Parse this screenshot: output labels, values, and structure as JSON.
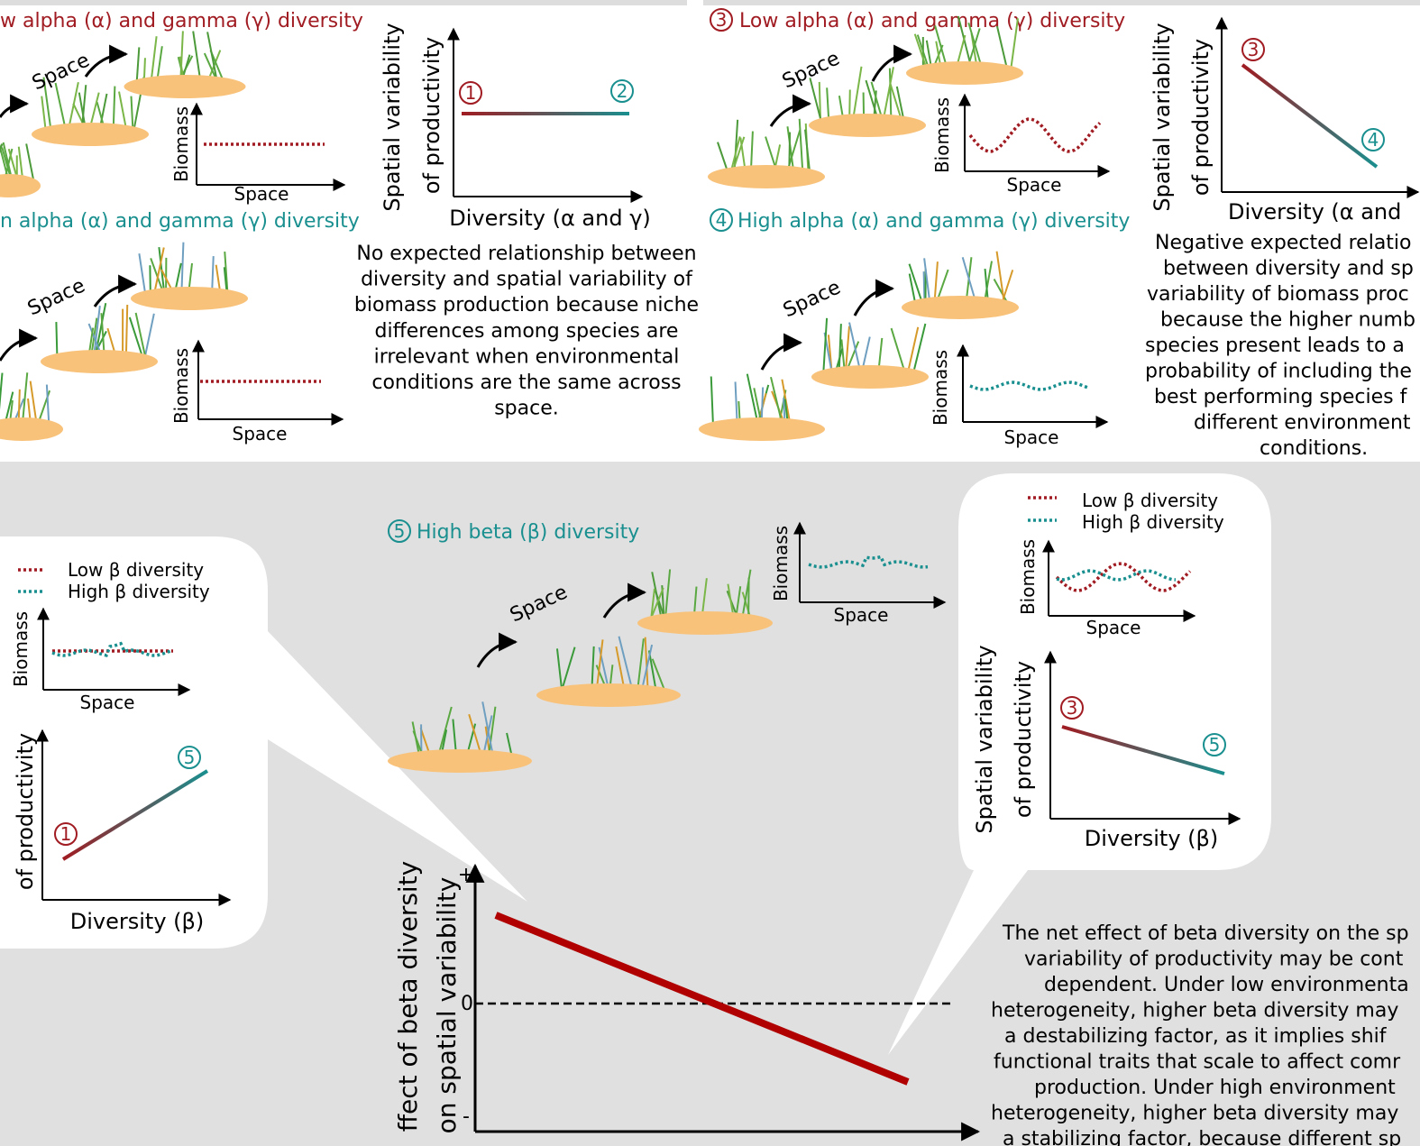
{
  "panel_a": {
    "scenario_low": {
      "label": "w alpha (α) and gamma (γ) diversity",
      "arrow_label": "Space",
      "y_axis": "Biomass",
      "x_axis": "Space"
    },
    "scenario_high": {
      "label": "n alpha (α) and gamma (γ) diversity",
      "arrow_label": "Space",
      "y_axis": "Biomass",
      "x_axis": "Space"
    },
    "plot": {
      "y_axis": [
        "Spatial variability",
        "of productivity"
      ],
      "x_axis": "Diversity (α and γ)",
      "markers": [
        "1",
        "2"
      ]
    },
    "caption": [
      "No expected relationship between",
      "diversity and spatial variability of",
      "biomass production because niche",
      "differences among species are",
      "irrelevant when environmental",
      "conditions are the same across",
      "space."
    ]
  },
  "panel_b": {
    "scenario_low": {
      "number": "3",
      "label": "Low alpha (α) and gamma (γ) diversity",
      "arrow_label": "Space",
      "y_axis": "Biomass",
      "x_axis": "Space"
    },
    "scenario_high": {
      "number": "4",
      "label": "High alpha (α) and gamma (γ) diversity",
      "arrow_label": "Space",
      "y_axis": "Biomass",
      "x_axis": "Space"
    },
    "plot": {
      "y_axis": [
        "Spatial variability",
        "of productivity"
      ],
      "x_axis": "Diversity (α and",
      "markers": [
        "3",
        "4"
      ]
    },
    "caption": [
      "Negative expected relatio",
      "between diversity and sp",
      "variability of biomass proc",
      "because the higher numb",
      "species present leads to a",
      "probability of including the",
      "best performing species f",
      "different environment",
      "conditions."
    ]
  },
  "panel_c": {
    "left_bubble": {
      "legend": [
        "Low β diversity",
        "High β diversity"
      ],
      "inset": {
        "y_axis": "Biomass",
        "x_axis": "Space"
      },
      "plot": {
        "y_axis": "of productivity",
        "x_axis": "Diversity (β)",
        "markers": [
          "1",
          "5"
        ]
      }
    },
    "scenario_beta": {
      "number": "5",
      "label": "High beta (β) diversity",
      "arrow_label": "Space",
      "y_axis": "Biomass",
      "x_axis": "Space"
    },
    "right_bubble": {
      "legend": [
        "Low β diversity",
        "High β diversity"
      ],
      "inset": {
        "y_axis": "Biomass",
        "x_axis": "Space"
      },
      "plot": {
        "y_axis": [
          "Spatial variability",
          "of productivity"
        ],
        "x_axis": "Diversity (β)",
        "markers": [
          "3",
          "5"
        ]
      }
    },
    "main_plot": {
      "y_axis": [
        "ffect of beta diversity",
        "on spatial variability"
      ],
      "ticks": [
        "+",
        "0",
        "-"
      ]
    },
    "caption": [
      "The net effect of beta diversity on the sp",
      "variability of productivity may be cont",
      "dependent. Under low environmenta",
      "heterogeneity, higher beta diversity may",
      "a destabilizing factor, as it implies shif",
      "functional traits that scale to affect comr",
      "production. Under high environment",
      "heterogeneity, higher beta diversity may",
      "a stabilizing factor, because different sp"
    ]
  }
}
